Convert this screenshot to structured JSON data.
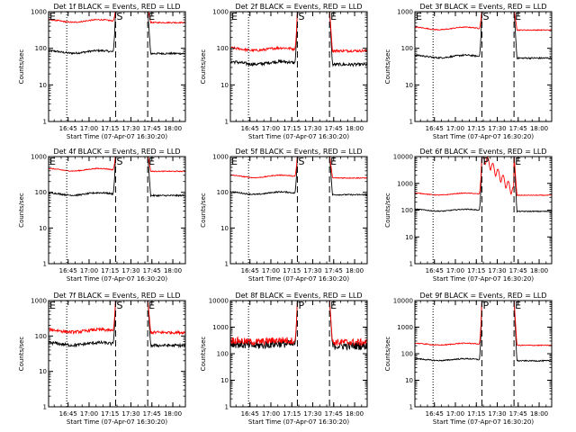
{
  "chart_data": [
    {
      "type": "line",
      "title": "Det 1f BLACK = Events, RED = LLD",
      "xlabel": "Start Time (07-Apr-07 16:30:20)",
      "ylabel": "Counts/sec",
      "yscale": "log",
      "ylim": [
        1,
        1000
      ],
      "xlim_minutes": [
        "16:31",
        "18:09"
      ],
      "x_tick_labels": [
        "16:45",
        "17:00",
        "17:15",
        "17:30",
        "17:45",
        "18:00"
      ],
      "y_tick_labels": [
        "1",
        "10",
        "100",
        "1000"
      ],
      "markers": [
        {
          "label": "E",
          "time": "16:31"
        },
        {
          "label": "S",
          "time": "17:19"
        },
        {
          "label": "E",
          "time": "17:42"
        }
      ],
      "vlines": [
        {
          "time": "16:44",
          "style": "dotted"
        },
        {
          "time": "17:19",
          "style": "dashed"
        },
        {
          "time": "17:42",
          "style": "dashed"
        }
      ],
      "series": [
        {
          "color": "#000000",
          "base": 80,
          "peak": 1200,
          "noise": 0.06
        },
        {
          "color": "#ff0000",
          "base": 560,
          "peak": 1200,
          "noise": 0.04
        }
      ]
    },
    {
      "type": "line",
      "title": "Det 2f BLACK = Events, RED = LLD",
      "xlabel": "Start Time (07-Apr-07 16:30:20)",
      "ylabel": "Counts/sec",
      "yscale": "log",
      "ylim": [
        1,
        1000
      ],
      "x_tick_labels": [
        "16:45",
        "17:00",
        "17:15",
        "17:30",
        "17:45",
        "18:00"
      ],
      "y_tick_labels": [
        "1",
        "10",
        "100",
        "1000"
      ],
      "markers": [
        {
          "label": "E",
          "time": "16:31"
        },
        {
          "label": "S",
          "time": "17:19"
        },
        {
          "label": "E",
          "time": "17:42"
        }
      ],
      "vlines": [
        {
          "time": "16:44",
          "style": "dotted"
        },
        {
          "time": "17:19",
          "style": "dashed"
        },
        {
          "time": "17:42",
          "style": "dashed"
        }
      ],
      "series": [
        {
          "color": "#000000",
          "base": 40,
          "peak": 1200,
          "noise": 0.1
        },
        {
          "color": "#ff0000",
          "base": 95,
          "peak": 1200,
          "noise": 0.08
        }
      ]
    },
    {
      "type": "line",
      "title": "Det 3f BLACK = Events, RED = LLD",
      "xlabel": "Start Time (07-Apr-07 16:30:20)",
      "ylabel": "Counts/sec",
      "yscale": "log",
      "ylim": [
        1,
        1000
      ],
      "x_tick_labels": [
        "16:45",
        "17:00",
        "17:15",
        "17:30",
        "17:45",
        "18:00"
      ],
      "y_tick_labels": [
        "1",
        "10",
        "100",
        "1000"
      ],
      "markers": [
        {
          "label": "E",
          "time": "16:31"
        },
        {
          "label": "S",
          "time": "17:19"
        },
        {
          "label": "E",
          "time": "17:42"
        }
      ],
      "vlines": [
        {
          "time": "16:44",
          "style": "dotted"
        },
        {
          "time": "17:19",
          "style": "dashed"
        },
        {
          "time": "17:42",
          "style": "dashed"
        }
      ],
      "series": [
        {
          "color": "#000000",
          "base": 60,
          "peak": 1200,
          "noise": 0.05
        },
        {
          "color": "#ff0000",
          "base": 350,
          "peak": 1200,
          "noise": 0.03
        }
      ]
    },
    {
      "type": "line",
      "title": "Det 4f BLACK = Events, RED = LLD",
      "xlabel": "Start Time (07-Apr-07 16:30:20)",
      "ylabel": "Counts/sec",
      "yscale": "log",
      "ylim": [
        1,
        1000
      ],
      "x_tick_labels": [
        "16:45",
        "17:00",
        "17:15",
        "17:30",
        "17:45",
        "18:00"
      ],
      "y_tick_labels": [
        "1",
        "10",
        "100",
        "1000"
      ],
      "markers": [
        {
          "label": "E",
          "time": "16:31"
        },
        {
          "label": "S",
          "time": "17:19"
        },
        {
          "label": "E",
          "time": "17:42"
        }
      ],
      "vlines": [
        {
          "time": "16:44",
          "style": "dotted"
        },
        {
          "time": "17:19",
          "style": "dashed"
        },
        {
          "time": "17:42",
          "style": "dashed"
        }
      ],
      "series": [
        {
          "color": "#000000",
          "base": 90,
          "peak": 1200,
          "noise": 0.05
        },
        {
          "color": "#ff0000",
          "base": 430,
          "peak": 1200,
          "noise": 0.03
        }
      ]
    },
    {
      "type": "line",
      "title": "Det 5f BLACK = Events, RED = LLD",
      "xlabel": "Start Time (07-Apr-07 16:30:20)",
      "ylabel": "Counts/sec",
      "yscale": "log",
      "ylim": [
        1,
        1000
      ],
      "x_tick_labels": [
        "16:45",
        "17:00",
        "17:15",
        "17:30",
        "17:45",
        "18:00"
      ],
      "y_tick_labels": [
        "1",
        "10",
        "100",
        "1000"
      ],
      "markers": [
        {
          "label": "E",
          "time": "16:31"
        },
        {
          "label": "S",
          "time": "17:19"
        },
        {
          "label": "E",
          "time": "17:42"
        }
      ],
      "vlines": [
        {
          "time": "16:44",
          "style": "dotted"
        },
        {
          "time": "17:19",
          "style": "dashed"
        },
        {
          "time": "17:42",
          "style": "dashed"
        }
      ],
      "series": [
        {
          "color": "#000000",
          "base": 95,
          "peak": 1200,
          "noise": 0.04
        },
        {
          "color": "#ff0000",
          "base": 280,
          "peak": 1200,
          "noise": 0.03
        }
      ]
    },
    {
      "type": "line",
      "title": "Det 6f BLACK = Events, RED = LLD",
      "xlabel": "Start Time (07-Apr-07 16:30:20)",
      "ylabel": "Counts/sec",
      "yscale": "log",
      "ylim": [
        1,
        10000
      ],
      "x_tick_labels": [
        "16:45",
        "17:00",
        "17:15",
        "17:30",
        "17:45",
        "18:00"
      ],
      "y_tick_labels": [
        "1",
        "10",
        "100",
        "1000",
        "10000"
      ],
      "markers": [
        {
          "label": "P",
          "time": "17:19"
        },
        {
          "label": "E",
          "time": "17:42"
        }
      ],
      "vlines": [
        {
          "time": "16:44",
          "style": "dotted"
        },
        {
          "time": "17:19",
          "style": "dashed"
        },
        {
          "time": "17:42",
          "style": "dashed"
        }
      ],
      "series": [
        {
          "color": "#000000",
          "base": 100,
          "peak": 12000,
          "noise": 0.04
        },
        {
          "color": "#ff0000",
          "base": 400,
          "peak": 12000,
          "noise": 0.03,
          "flare": true
        }
      ]
    },
    {
      "type": "line",
      "title": "Det 7f BLACK = Events, RED = LLD",
      "xlabel": "Start Time (07-Apr-07 16:30:20)",
      "ylabel": "Counts/sec",
      "yscale": "log",
      "ylim": [
        1,
        1000
      ],
      "x_tick_labels": [
        "16:45",
        "17:00",
        "17:15",
        "17:30",
        "17:45",
        "18:00"
      ],
      "y_tick_labels": [
        "1",
        "10",
        "100",
        "1000"
      ],
      "markers": [
        {
          "label": "E",
          "time": "16:31"
        },
        {
          "label": "S",
          "time": "17:19"
        },
        {
          "label": "E",
          "time": "17:42"
        }
      ],
      "vlines": [
        {
          "time": "16:44",
          "style": "dotted"
        },
        {
          "time": "17:19",
          "style": "dashed"
        },
        {
          "time": "17:42",
          "style": "dashed"
        }
      ],
      "series": [
        {
          "color": "#000000",
          "base": 60,
          "peak": 1200,
          "noise": 0.1
        },
        {
          "color": "#ff0000",
          "base": 140,
          "peak": 1200,
          "noise": 0.1
        }
      ]
    },
    {
      "type": "line",
      "title": "Det 8f BLACK = Events, RED = LLD",
      "xlabel": "Start Time (07-Apr-07 16:30:20)",
      "ylabel": "Counts/sec",
      "yscale": "log",
      "ylim": [
        1,
        10000
      ],
      "x_tick_labels": [
        "16:45",
        "17:00",
        "17:15",
        "17:30",
        "17:45",
        "18:00"
      ],
      "y_tick_labels": [
        "1",
        "10",
        "100",
        "1000",
        "10000"
      ],
      "markers": [
        {
          "label": "P",
          "time": "17:19"
        },
        {
          "label": "E",
          "time": "17:42"
        }
      ],
      "vlines": [
        {
          "time": "16:44",
          "style": "dotted"
        },
        {
          "time": "17:19",
          "style": "dashed"
        },
        {
          "time": "17:42",
          "style": "dashed"
        }
      ],
      "series": [
        {
          "color": "#000000",
          "base": 220,
          "peak": 12000,
          "noise": 0.35
        },
        {
          "color": "#ff0000",
          "base": 300,
          "peak": 12000,
          "noise": 0.3
        }
      ]
    },
    {
      "type": "line",
      "title": "Det 9f BLACK = Events, RED = LLD",
      "xlabel": "Start Time (07-Apr-07 16:30:20)",
      "ylabel": "Counts/sec",
      "yscale": "log",
      "ylim": [
        1,
        10000
      ],
      "x_tick_labels": [
        "16:45",
        "17:00",
        "17:15",
        "17:30",
        "17:45",
        "18:00"
      ],
      "y_tick_labels": [
        "1",
        "10",
        "100",
        "1000",
        "10000"
      ],
      "markers": [
        {
          "label": "P",
          "time": "17:19"
        },
        {
          "label": "E",
          "time": "17:42"
        }
      ],
      "vlines": [
        {
          "time": "16:44",
          "style": "dotted"
        },
        {
          "time": "17:19",
          "style": "dashed"
        },
        {
          "time": "17:42",
          "style": "dashed"
        }
      ],
      "series": [
        {
          "color": "#000000",
          "base": 60,
          "peak": 12000,
          "noise": 0.05
        },
        {
          "color": "#ff0000",
          "base": 230,
          "peak": 12000,
          "noise": 0.04
        }
      ]
    }
  ]
}
